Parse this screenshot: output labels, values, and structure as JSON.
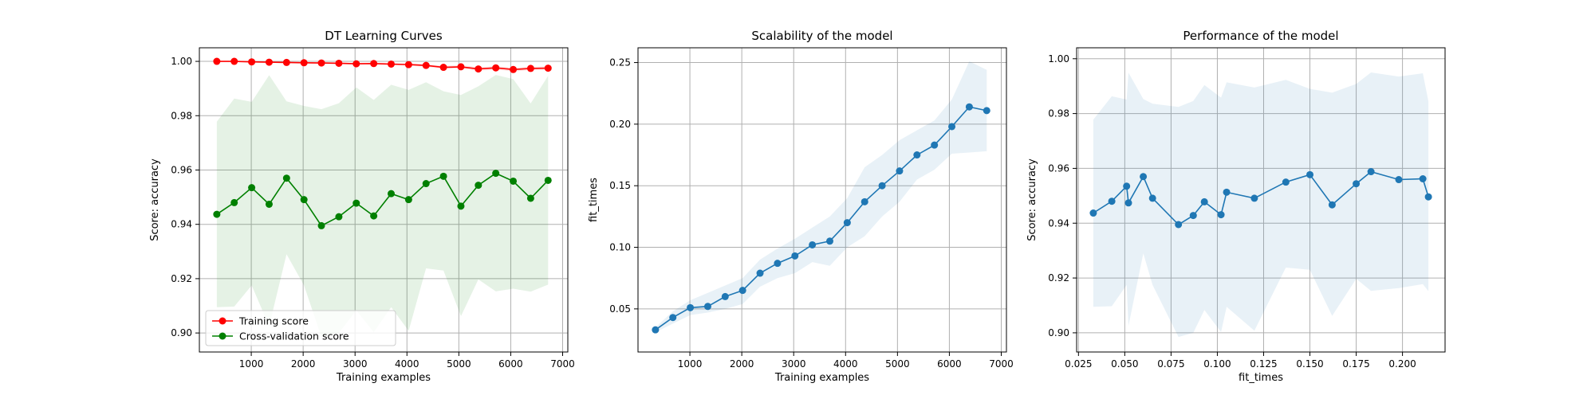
{
  "chart_data": [
    {
      "type": "line",
      "title": "DT Learning Curves",
      "xlabel": "Training examples",
      "ylabel": "Score: accuracy",
      "xlim": [
        0,
        7100
      ],
      "ylim": [
        0.893,
        1.005
      ],
      "xticks": [
        1000,
        2000,
        3000,
        4000,
        5000,
        6000,
        7000
      ],
      "xtick_labels": [
        "1000",
        "2000",
        "3000",
        "4000",
        "5000",
        "6000",
        "7000"
      ],
      "yticks": [
        0.9,
        0.92,
        0.94,
        0.96,
        0.98,
        1.0
      ],
      "ytick_labels": [
        "0.90",
        "0.92",
        "0.94",
        "0.96",
        "0.98",
        "1.00"
      ],
      "grid": true,
      "legend": "lower-left",
      "x": [
        336,
        672,
        1008,
        1344,
        1680,
        2016,
        2352,
        2688,
        3024,
        3360,
        3696,
        4032,
        4368,
        4704,
        5040,
        5376,
        5712,
        6048,
        6384,
        6720
      ],
      "series": [
        {
          "name": "Training score",
          "color": "#ff0000",
          "values": [
            1.0,
            1.0,
            0.9998,
            0.9997,
            0.9996,
            0.9995,
            0.9994,
            0.9993,
            0.9991,
            0.9992,
            0.999,
            0.9988,
            0.9985,
            0.9978,
            0.998,
            0.9972,
            0.9976,
            0.997,
            0.9974,
            0.9975
          ],
          "band_lower": [
            1.0,
            0.9998,
            0.9996,
            0.9995,
            0.9993,
            0.9992,
            0.9991,
            0.999,
            0.9988,
            0.9989,
            0.9986,
            0.9984,
            0.998,
            0.9972,
            0.9974,
            0.9965,
            0.9969,
            0.9963,
            0.9967,
            0.9968
          ],
          "band_upper": [
            1.0,
            1.0,
            1.0,
            0.9999,
            0.9999,
            0.9998,
            0.9997,
            0.9996,
            0.9994,
            0.9995,
            0.9994,
            0.9992,
            0.999,
            0.9984,
            0.9986,
            0.9979,
            0.9983,
            0.9977,
            0.9981,
            0.9982
          ]
        },
        {
          "name": "Cross-validation score",
          "color": "#008000",
          "values": [
            0.9437,
            0.948,
            0.9535,
            0.9474,
            0.957,
            0.9491,
            0.9395,
            0.9428,
            0.9478,
            0.9431,
            0.9513,
            0.9491,
            0.955,
            0.9577,
            0.9467,
            0.9544,
            0.9588,
            0.9559,
            0.9496,
            0.9562
          ],
          "band_lower": [
            0.9095,
            0.9097,
            0.9175,
            0.9025,
            0.929,
            0.9175,
            0.8985,
            0.9,
            0.9083,
            0.9003,
            0.9095,
            0.9008,
            0.9238,
            0.923,
            0.9062,
            0.9197,
            0.9153,
            0.9163,
            0.9152,
            0.9178
          ],
          "band_upper": [
            0.9778,
            0.9863,
            0.9851,
            0.9949,
            0.9853,
            0.9836,
            0.9824,
            0.9846,
            0.9904,
            0.9858,
            0.9914,
            0.9895,
            0.9923,
            0.989,
            0.9876,
            0.9908,
            0.995,
            0.9935,
            0.9845,
            0.9947
          ]
        }
      ]
    },
    {
      "type": "line",
      "title": "Scalability of the model",
      "xlabel": "Training examples",
      "ylabel": "fit_times",
      "xlim": [
        0,
        7100
      ],
      "ylim": [
        0.015,
        0.262
      ],
      "xticks": [
        1000,
        2000,
        3000,
        4000,
        5000,
        6000,
        7000
      ],
      "xtick_labels": [
        "1000",
        "2000",
        "3000",
        "4000",
        "5000",
        "6000",
        "7000"
      ],
      "yticks": [
        0.05,
        0.1,
        0.15,
        0.2,
        0.25
      ],
      "ytick_labels": [
        "0.05",
        "0.10",
        "0.15",
        "0.20",
        "0.25"
      ],
      "grid": true,
      "x": [
        336,
        672,
        1008,
        1344,
        1680,
        2016,
        2352,
        2688,
        3024,
        3360,
        3696,
        4032,
        4368,
        4704,
        5040,
        5376,
        5712,
        6048,
        6384,
        6720
      ],
      "series": [
        {
          "color": "#1f77b4",
          "values": [
            0.033,
            0.043,
            0.051,
            0.052,
            0.06,
            0.065,
            0.079,
            0.087,
            0.093,
            0.102,
            0.105,
            0.12,
            0.137,
            0.15,
            0.162,
            0.175,
            0.183,
            0.198,
            0.214,
            0.211
          ],
          "band_lower": [
            0.031,
            0.038,
            0.045,
            0.047,
            0.05,
            0.054,
            0.068,
            0.075,
            0.079,
            0.088,
            0.085,
            0.1,
            0.109,
            0.125,
            0.137,
            0.155,
            0.163,
            0.176,
            0.177,
            0.178
          ],
          "band_upper": [
            0.035,
            0.048,
            0.057,
            0.063,
            0.069,
            0.075,
            0.09,
            0.099,
            0.107,
            0.116,
            0.125,
            0.14,
            0.165,
            0.175,
            0.187,
            0.195,
            0.203,
            0.22,
            0.251,
            0.244
          ]
        }
      ]
    },
    {
      "type": "line",
      "title": "Performance of the model",
      "xlabel": "fit_times",
      "ylabel": "Score: accuracy",
      "xlim": [
        0.024,
        0.223
      ],
      "ylim": [
        0.893,
        1.004
      ],
      "xticks": [
        0.025,
        0.05,
        0.075,
        0.1,
        0.125,
        0.15,
        0.175,
        0.2
      ],
      "xtick_labels": [
        "0.025",
        "0.050",
        "0.075",
        "0.100",
        "0.125",
        "0.150",
        "0.175",
        "0.200"
      ],
      "yticks": [
        0.9,
        0.92,
        0.94,
        0.96,
        0.98,
        1.0
      ],
      "ytick_labels": [
        "0.90",
        "0.92",
        "0.94",
        "0.96",
        "0.98",
        "1.00"
      ],
      "grid": true,
      "series": [
        {
          "color": "#1f77b4",
          "x": [
            0.033,
            0.043,
            0.051,
            0.052,
            0.06,
            0.065,
            0.079,
            0.087,
            0.093,
            0.102,
            0.105,
            0.12,
            0.137,
            0.15,
            0.162,
            0.175,
            0.183,
            0.198,
            0.211,
            0.214
          ],
          "values": [
            0.9437,
            0.948,
            0.9535,
            0.9474,
            0.957,
            0.9491,
            0.9395,
            0.9428,
            0.9478,
            0.9431,
            0.9513,
            0.9491,
            0.955,
            0.9577,
            0.9467,
            0.9544,
            0.9588,
            0.9559,
            0.9562,
            0.9496
          ],
          "band_lower": [
            0.9095,
            0.9097,
            0.9175,
            0.9025,
            0.929,
            0.9175,
            0.8985,
            0.9,
            0.9083,
            0.9003,
            0.9095,
            0.9008,
            0.9238,
            0.923,
            0.9062,
            0.9197,
            0.9153,
            0.9163,
            0.9178,
            0.9152
          ],
          "band_upper": [
            0.9778,
            0.9863,
            0.9851,
            0.9949,
            0.9853,
            0.9836,
            0.9824,
            0.9846,
            0.9904,
            0.9858,
            0.9914,
            0.9895,
            0.9923,
            0.989,
            0.9876,
            0.9908,
            0.995,
            0.9935,
            0.9947,
            0.9845
          ]
        }
      ]
    }
  ]
}
